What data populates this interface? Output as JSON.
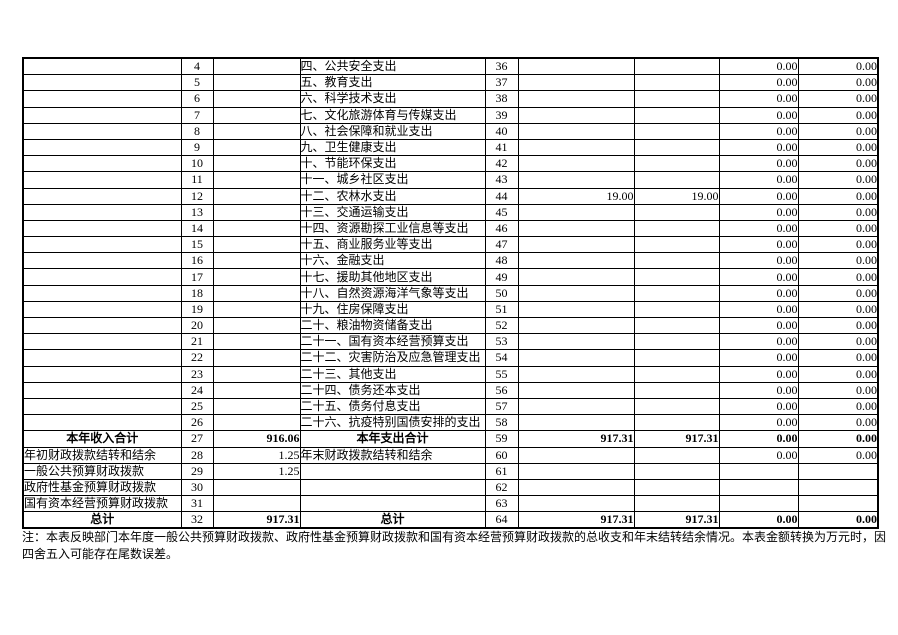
{
  "colors": {
    "background": "#ffffff",
    "text": "#000000",
    "border": "#000000"
  },
  "table": {
    "rows": [
      {
        "left_item": "",
        "left_no": "4",
        "left_amt": "",
        "right_item": "四、公共安全支出",
        "right_no": "36",
        "a1": "",
        "a2": "",
        "a3": "0.00",
        "a4": "0.00",
        "emphasis": false
      },
      {
        "left_item": "",
        "left_no": "5",
        "left_amt": "",
        "right_item": "五、教育支出",
        "right_no": "37",
        "a1": "",
        "a2": "",
        "a3": "0.00",
        "a4": "0.00",
        "emphasis": false
      },
      {
        "left_item": "",
        "left_no": "6",
        "left_amt": "",
        "right_item": "六、科学技术支出",
        "right_no": "38",
        "a1": "",
        "a2": "",
        "a3": "0.00",
        "a4": "0.00",
        "emphasis": false
      },
      {
        "left_item": "",
        "left_no": "7",
        "left_amt": "",
        "right_item": "七、文化旅游体育与传媒支出",
        "right_no": "39",
        "a1": "",
        "a2": "",
        "a3": "0.00",
        "a4": "0.00",
        "emphasis": false
      },
      {
        "left_item": "",
        "left_no": "8",
        "left_amt": "",
        "right_item": "八、社会保障和就业支出",
        "right_no": "40",
        "a1": "",
        "a2": "",
        "a3": "0.00",
        "a4": "0.00",
        "emphasis": false
      },
      {
        "left_item": "",
        "left_no": "9",
        "left_amt": "",
        "right_item": "九、卫生健康支出",
        "right_no": "41",
        "a1": "",
        "a2": "",
        "a3": "0.00",
        "a4": "0.00",
        "emphasis": false
      },
      {
        "left_item": "",
        "left_no": "10",
        "left_amt": "",
        "right_item": "十、节能环保支出",
        "right_no": "42",
        "a1": "",
        "a2": "",
        "a3": "0.00",
        "a4": "0.00",
        "emphasis": false
      },
      {
        "left_item": "",
        "left_no": "11",
        "left_amt": "",
        "right_item": "十一、城乡社区支出",
        "right_no": "43",
        "a1": "",
        "a2": "",
        "a3": "0.00",
        "a4": "0.00",
        "emphasis": false
      },
      {
        "left_item": "",
        "left_no": "12",
        "left_amt": "",
        "right_item": "十二、农林水支出",
        "right_no": "44",
        "a1": "19.00",
        "a2": "19.00",
        "a3": "0.00",
        "a4": "0.00",
        "emphasis": false
      },
      {
        "left_item": "",
        "left_no": "13",
        "left_amt": "",
        "right_item": "十三、交通运输支出",
        "right_no": "45",
        "a1": "",
        "a2": "",
        "a3": "0.00",
        "a4": "0.00",
        "emphasis": false
      },
      {
        "left_item": "",
        "left_no": "14",
        "left_amt": "",
        "right_item": "十四、资源勘探工业信息等支出",
        "right_no": "46",
        "a1": "",
        "a2": "",
        "a3": "0.00",
        "a4": "0.00",
        "emphasis": false
      },
      {
        "left_item": "",
        "left_no": "15",
        "left_amt": "",
        "right_item": "十五、商业服务业等支出",
        "right_no": "47",
        "a1": "",
        "a2": "",
        "a3": "0.00",
        "a4": "0.00",
        "emphasis": false
      },
      {
        "left_item": "",
        "left_no": "16",
        "left_amt": "",
        "right_item": "十六、金融支出",
        "right_no": "48",
        "a1": "",
        "a2": "",
        "a3": "0.00",
        "a4": "0.00",
        "emphasis": false
      },
      {
        "left_item": "",
        "left_no": "17",
        "left_amt": "",
        "right_item": "十七、援助其他地区支出",
        "right_no": "49",
        "a1": "",
        "a2": "",
        "a3": "0.00",
        "a4": "0.00",
        "emphasis": false
      },
      {
        "left_item": "",
        "left_no": "18",
        "left_amt": "",
        "right_item": "十八、自然资源海洋气象等支出",
        "right_no": "50",
        "a1": "",
        "a2": "",
        "a3": "0.00",
        "a4": "0.00",
        "emphasis": false
      },
      {
        "left_item": "",
        "left_no": "19",
        "left_amt": "",
        "right_item": "十九、住房保障支出",
        "right_no": "51",
        "a1": "",
        "a2": "",
        "a3": "0.00",
        "a4": "0.00",
        "emphasis": false
      },
      {
        "left_item": "",
        "left_no": "20",
        "left_amt": "",
        "right_item": "二十、粮油物资储备支出",
        "right_no": "52",
        "a1": "",
        "a2": "",
        "a3": "0.00",
        "a4": "0.00",
        "emphasis": false
      },
      {
        "left_item": "",
        "left_no": "21",
        "left_amt": "",
        "right_item": "二十一、国有资本经营预算支出",
        "right_no": "53",
        "a1": "",
        "a2": "",
        "a3": "0.00",
        "a4": "0.00",
        "emphasis": false
      },
      {
        "left_item": "",
        "left_no": "22",
        "left_amt": "",
        "right_item": "二十二、灾害防治及应急管理支出",
        "right_no": "54",
        "a1": "",
        "a2": "",
        "a3": "0.00",
        "a4": "0.00",
        "emphasis": false
      },
      {
        "left_item": "",
        "left_no": "23",
        "left_amt": "",
        "right_item": "二十三、其他支出",
        "right_no": "55",
        "a1": "",
        "a2": "",
        "a3": "0.00",
        "a4": "0.00",
        "emphasis": false
      },
      {
        "left_item": "",
        "left_no": "24",
        "left_amt": "",
        "right_item": "二十四、债务还本支出",
        "right_no": "56",
        "a1": "",
        "a2": "",
        "a3": "0.00",
        "a4": "0.00",
        "emphasis": false
      },
      {
        "left_item": "",
        "left_no": "25",
        "left_amt": "",
        "right_item": "二十五、债务付息支出",
        "right_no": "57",
        "a1": "",
        "a2": "",
        "a3": "0.00",
        "a4": "0.00",
        "emphasis": false
      },
      {
        "left_item": "",
        "left_no": "26",
        "left_amt": "",
        "right_item": "二十六、抗疫特别国债安排的支出",
        "right_no": "58",
        "a1": "",
        "a2": "",
        "a3": "0.00",
        "a4": "0.00",
        "emphasis": false
      },
      {
        "left_item": "本年收入合计",
        "left_no": "27",
        "left_amt": "916.06",
        "right_item": "本年支出合计",
        "right_no": "59",
        "a1": "917.31",
        "a2": "917.31",
        "a3": "0.00",
        "a4": "0.00",
        "emphasis": true
      },
      {
        "left_item": "年初财政拨款结转和结余",
        "left_no": "28",
        "left_amt": "1.25",
        "right_item": "年末财政拨款结转和结余",
        "right_no": "60",
        "a1": "",
        "a2": "",
        "a3": "0.00",
        "a4": "0.00",
        "emphasis": false
      },
      {
        "left_item": "一般公共预算财政拨款",
        "left_no": "29",
        "left_amt": "1.25",
        "right_item": "",
        "right_no": "61",
        "a1": "",
        "a2": "",
        "a3": "",
        "a4": "",
        "emphasis": false
      },
      {
        "left_item": "政府性基金预算财政拨款",
        "left_no": "30",
        "left_amt": "",
        "right_item": "",
        "right_no": "62",
        "a1": "",
        "a2": "",
        "a3": "",
        "a4": "",
        "emphasis": false
      },
      {
        "left_item": "国有资本经营预算财政拨款",
        "left_no": "31",
        "left_amt": "",
        "right_item": "",
        "right_no": "63",
        "a1": "",
        "a2": "",
        "a3": "",
        "a4": "",
        "emphasis": false
      },
      {
        "left_item": "总计",
        "left_no": "32",
        "left_amt": "917.31",
        "right_item": "总计",
        "right_no": "64",
        "a1": "917.31",
        "a2": "917.31",
        "a3": "0.00",
        "a4": "0.00",
        "emphasis": true
      }
    ]
  },
  "note": {
    "line1": "注：本表反映部门本年度一般公共预算财政拨款、政府性基金预算财政拨款和国有资本经营预算财政拨款的总收支和年末结转结余情况。本表金额转换为万元时，因",
    "line2": "四舍五入可能存在尾数误差。"
  }
}
